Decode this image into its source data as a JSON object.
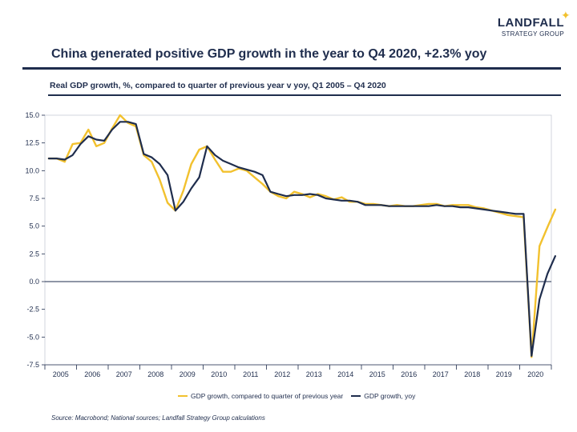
{
  "header": {
    "logo_name": "LANDFALL",
    "logo_sub": "STRATEGY GROUP",
    "title": "China generated positive GDP growth in the year to Q4 2020, +2.3% yoy",
    "subtitle": "Real GDP growth, %, compared to quarter of previous year v yoy, Q1 2005 – Q4 2020"
  },
  "colors": {
    "accent": "#f2c12e",
    "navy": "#1f2d4d"
  },
  "footer": {
    "source": "Source: Macrobond;  National sources;  Landfall Strategy Group calculations"
  },
  "chart_data": {
    "type": "line",
    "title": "",
    "xlabel": "",
    "ylabel": "",
    "ylim": [
      -7.5,
      15.0
    ],
    "yticks": [
      "15.0",
      "12.5",
      "10.0",
      "7.5",
      "5.0",
      "2.5",
      "0.0",
      "-2.5",
      "-5.0",
      "-7.5"
    ],
    "ytick_values": [
      15.0,
      12.5,
      10.0,
      7.5,
      5.0,
      2.5,
      0.0,
      -2.5,
      -5.0,
      -7.5
    ],
    "xticks": [
      "2005",
      "2006",
      "2007",
      "2008",
      "2009",
      "2010",
      "2011",
      "2012",
      "2013",
      "2014",
      "2015",
      "2016",
      "2017",
      "2018",
      "2019",
      "2020"
    ],
    "grid": false,
    "legend_position": "bottom",
    "series": [
      {
        "name": "GDP growth, compared to quarter of previous year",
        "color": "#f2c12e",
        "values": [
          11.1,
          11.1,
          10.8,
          12.4,
          12.5,
          13.7,
          12.2,
          12.5,
          13.8,
          15.0,
          14.3,
          14.0,
          11.4,
          10.8,
          9.2,
          7.1,
          6.4,
          8.2,
          10.6,
          11.9,
          12.2,
          11.0,
          9.9,
          9.9,
          10.2,
          10.0,
          9.4,
          8.8,
          8.1,
          7.7,
          7.5,
          8.1,
          7.9,
          7.6,
          7.9,
          7.7,
          7.4,
          7.6,
          7.2,
          7.2,
          7.0,
          7.0,
          6.9,
          6.8,
          6.9,
          6.8,
          6.8,
          6.9,
          7.0,
          7.0,
          6.8,
          6.9,
          6.9,
          6.9,
          6.7,
          6.6,
          6.4,
          6.2,
          6.0,
          5.9,
          5.8,
          -6.8,
          3.2,
          4.9,
          6.5
        ],
        "x_start_year": 2005
      },
      {
        "name": "GDP growth, yoy",
        "color": "#1f2d4d",
        "values": [
          11.1,
          11.1,
          11.0,
          11.4,
          12.4,
          13.1,
          12.8,
          12.7,
          13.7,
          14.4,
          14.4,
          14.2,
          11.5,
          11.2,
          10.6,
          9.6,
          6.4,
          7.2,
          8.4,
          9.4,
          12.2,
          11.4,
          10.9,
          10.6,
          10.3,
          10.1,
          9.9,
          9.6,
          8.1,
          7.9,
          7.7,
          7.8,
          7.8,
          7.9,
          7.8,
          7.5,
          7.4,
          7.3,
          7.3,
          7.2,
          6.9,
          6.9,
          6.9,
          6.8,
          6.8,
          6.8,
          6.8,
          6.8,
          6.8,
          6.9,
          6.8,
          6.8,
          6.7,
          6.7,
          6.6,
          6.5,
          6.4,
          6.3,
          6.2,
          6.1,
          6.1,
          -6.7,
          -1.6,
          0.7,
          2.3
        ],
        "x_start_year": 2005
      }
    ]
  }
}
